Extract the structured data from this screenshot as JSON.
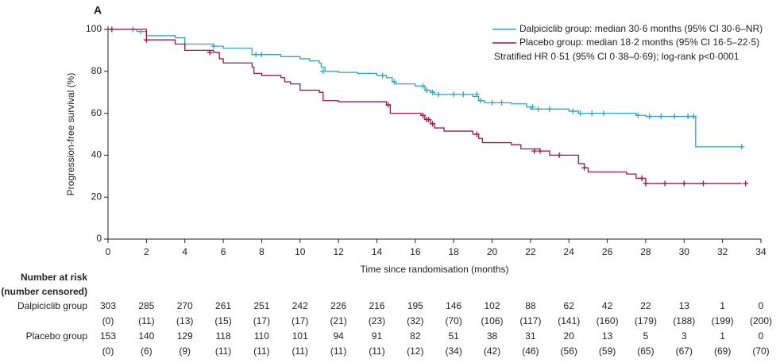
{
  "chart_data": {
    "type": "step",
    "panel_label": "A",
    "xlabel": "Time since randomisation (months)",
    "ylabel": "Progression-free survival (%)",
    "xlim": [
      0,
      34
    ],
    "ylim": [
      0,
      100
    ],
    "xticks": [
      0,
      2,
      4,
      6,
      8,
      10,
      12,
      14,
      16,
      18,
      20,
      22,
      24,
      26,
      28,
      30,
      32,
      34
    ],
    "yticks": [
      0,
      20,
      40,
      60,
      80,
      100
    ],
    "legend_position": "upper right",
    "annotation": "Stratified HR 0·51 (95% CI 0·38–0·69); log-rank p<0·0001",
    "series": [
      {
        "name": "Dalpiciclib group: median 30·6 months (95% CI 30·6–NR)",
        "color": "#2ba7bd",
        "x": [
          0,
          1.5,
          2,
          3.5,
          4,
          5.5,
          6,
          7.5,
          9,
          10,
          10.5,
          11,
          11.1,
          11.3,
          12,
          13,
          14,
          14.5,
          14.8,
          15,
          16,
          16.5,
          16.8,
          17,
          19,
          19.3,
          19.6,
          21,
          21.8,
          22,
          24,
          24.5,
          27.5,
          28,
          30.6,
          33
        ],
        "values": [
          100,
          99,
          97,
          96,
          93,
          92,
          91,
          88,
          87,
          86,
          85,
          84,
          82,
          80,
          79.5,
          79,
          78,
          77,
          75,
          74,
          73,
          71,
          70,
          69,
          68,
          66,
          65,
          64.5,
          63,
          62,
          61,
          60,
          59,
          58.5,
          44,
          44
        ],
        "censored": {
          "x": [
            1.3,
            1.7,
            4,
            5.5,
            7.7,
            8,
            11.2,
            14.3,
            14.9,
            16.4,
            16.6,
            16.9,
            17.2,
            18,
            18.5,
            19.2,
            19.4,
            20,
            20.5,
            22.1,
            22.4,
            23,
            24.2,
            24.6,
            25.2,
            25.8,
            27.6,
            28.2,
            28.8,
            29.5,
            30.2,
            30.5,
            33
          ],
          "values": [
            100,
            99,
            93,
            92,
            88,
            88,
            80,
            78,
            75,
            73,
            71,
            70,
            69,
            69,
            69,
            69,
            66,
            65,
            65,
            63,
            62,
            62,
            61,
            60,
            60,
            60,
            59,
            58.5,
            58.5,
            58.5,
            58.5,
            58.5,
            44
          ]
        }
      },
      {
        "name": "Placebo group: median 18·2 months (95% CI 16·5–22·5)",
        "color": "#a3154a",
        "x": [
          0,
          2,
          3.5,
          4,
          5.5,
          5.8,
          6,
          7.5,
          7.6,
          8,
          9,
          9.2,
          9.5,
          10,
          11,
          11.2,
          12,
          14.5,
          14.7,
          16.3,
          16.5,
          16.8,
          17,
          17.5,
          19,
          19.3,
          19.5,
          21,
          21.5,
          22.5,
          23,
          24.5,
          24.8,
          25,
          27,
          27.5,
          28,
          33
        ],
        "values": [
          100,
          95,
          93,
          90,
          89,
          86,
          84,
          82,
          79,
          78,
          77,
          75,
          74,
          71,
          70,
          66,
          65.5,
          64,
          60,
          59,
          57,
          55,
          53,
          51.5,
          50,
          48,
          46,
          45,
          43,
          42,
          40,
          36,
          34,
          32,
          31,
          29,
          26.5,
          26.5
        ],
        "censored": {
          "x": [
            0.2,
            2,
            5.3,
            14.6,
            16.4,
            16.6,
            16.7,
            16.9,
            19.2,
            22.2,
            22.5,
            23.5,
            24.8,
            27.8,
            28,
            29,
            30,
            31,
            33.2
          ],
          "values": [
            100,
            95,
            89,
            64,
            59,
            57,
            57,
            55,
            50,
            42,
            42,
            40,
            34,
            29,
            26.5,
            26.5,
            26.5,
            26.5,
            26.5
          ]
        }
      }
    ],
    "risk_table": {
      "title": "Number at risk",
      "subtitle": "(number censored)",
      "rows": [
        {
          "name": "Dalpiciclib group",
          "at_risk": [
            303,
            285,
            270,
            261,
            251,
            242,
            226,
            216,
            195,
            146,
            102,
            88,
            62,
            42,
            22,
            13,
            1,
            0
          ],
          "censored": [
            "(0)",
            "(11)",
            "(13)",
            "(15)",
            "(17)",
            "(17)",
            "(21)",
            "(23)",
            "(32)",
            "(70)",
            "(106)",
            "(117)",
            "(141)",
            "(160)",
            "(179)",
            "(188)",
            "(199)",
            "(200)"
          ]
        },
        {
          "name": "Placebo group",
          "at_risk": [
            153,
            140,
            129,
            118,
            110,
            101,
            94,
            91,
            82,
            51,
            38,
            31,
            20,
            13,
            5,
            3,
            1,
            0
          ],
          "censored": [
            "(0)",
            "(6)",
            "(9)",
            "(11)",
            "(11)",
            "(11)",
            "(11)",
            "(11)",
            "(12)",
            "(34)",
            "(42)",
            "(46)",
            "(56)",
            "(59)",
            "(65)",
            "(67)",
            "(69)",
            "(70)"
          ]
        }
      ]
    }
  }
}
